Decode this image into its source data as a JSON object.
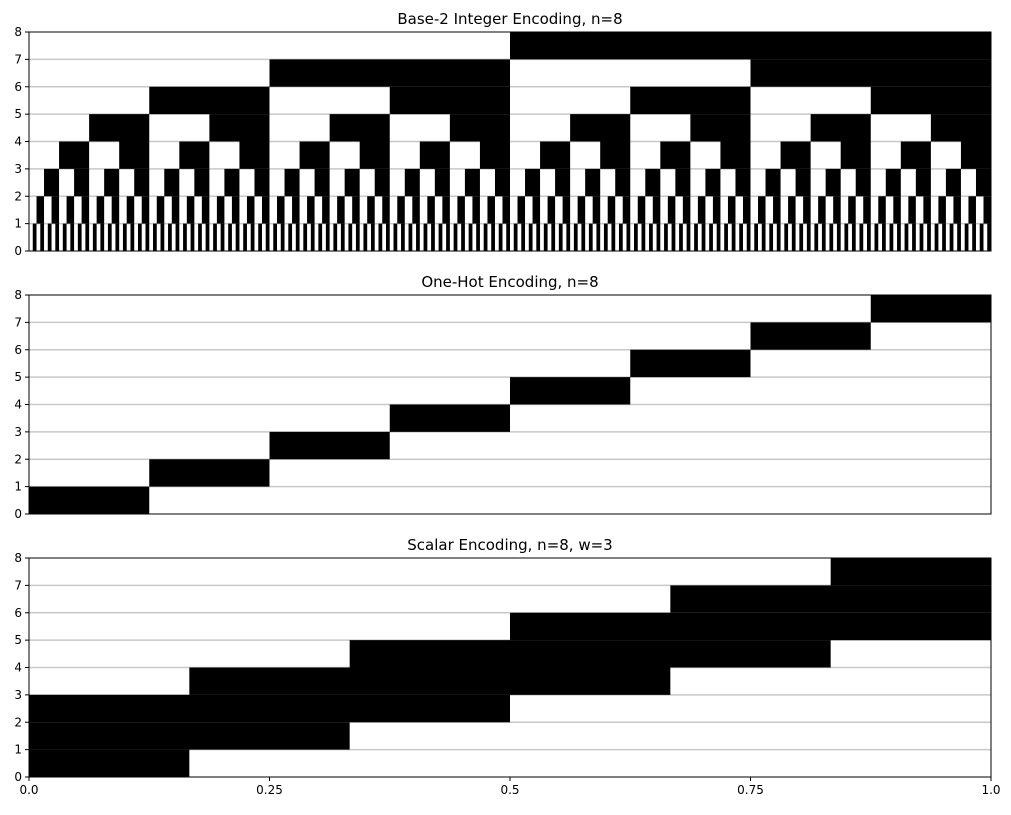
{
  "chart_data": [
    {
      "type": "heatmap",
      "title": "Base-2 Integer Encoding, n=8",
      "encoding": "binary",
      "bits": 8,
      "values": [
        0,
        1,
        2,
        3,
        4,
        5,
        6,
        7,
        8,
        9,
        10,
        11,
        12,
        13,
        14,
        15,
        16,
        17,
        18,
        19,
        20,
        21,
        22,
        23,
        24,
        25,
        26,
        27,
        28,
        29,
        30,
        31,
        32,
        33,
        34,
        35,
        36,
        37,
        38,
        39,
        40,
        41,
        42,
        43,
        44,
        45,
        46,
        47,
        48,
        49,
        50,
        51,
        52,
        53,
        54,
        55,
        56,
        57,
        58,
        59,
        60,
        61,
        62,
        63,
        64,
        65,
        66,
        67,
        68,
        69,
        70,
        71,
        72,
        73,
        74,
        75,
        76,
        77,
        78,
        79,
        80,
        81,
        82,
        83,
        84,
        85,
        86,
        87,
        88,
        89,
        90,
        91,
        92,
        93,
        94,
        95,
        96,
        97,
        98,
        99,
        100,
        101,
        102,
        103,
        104,
        105,
        106,
        107,
        108,
        109,
        110,
        111,
        112,
        113,
        114,
        115,
        116,
        117,
        118,
        119,
        120,
        121,
        122,
        123,
        124,
        125,
        126,
        127,
        128,
        129,
        130,
        131,
        132,
        133,
        134,
        135,
        136,
        137,
        138,
        139,
        140,
        141,
        142,
        143,
        144,
        145,
        146,
        147,
        148,
        149,
        150,
        151,
        152,
        153,
        154,
        155,
        156,
        157,
        158,
        159,
        160,
        161,
        162,
        163,
        164,
        165,
        166,
        167,
        168,
        169,
        170,
        171,
        172,
        173,
        174,
        175,
        176,
        177,
        178,
        179,
        180,
        181,
        182,
        183,
        184,
        185,
        186,
        187,
        188,
        189,
        190,
        191,
        192,
        193,
        194,
        195,
        196,
        197,
        198,
        199,
        200,
        201,
        202,
        203,
        204,
        205,
        206,
        207,
        208,
        209,
        210,
        211,
        212,
        213,
        214,
        215,
        216,
        217,
        218,
        219,
        220,
        221,
        222,
        223,
        224,
        225,
        226,
        227,
        228,
        229,
        230,
        231,
        232,
        233,
        234,
        235,
        236,
        237,
        238,
        239,
        240,
        241,
        242,
        243,
        244,
        245,
        246,
        247,
        248,
        249,
        250,
        251,
        252,
        253,
        254,
        255
      ],
      "xlim": [
        0,
        1
      ],
      "ylim": [
        0,
        8
      ],
      "yticks": [
        "0",
        "1",
        "2",
        "3",
        "4",
        "5",
        "6",
        "7",
        "8"
      ],
      "xticks": [],
      "grid": "horizontal"
    },
    {
      "type": "heatmap",
      "title": "One-Hot Encoding, n=8",
      "encoding": "one-hot",
      "active_start_row": [
        0,
        1,
        2,
        3,
        4,
        5,
        6,
        7
      ],
      "width": 1,
      "xlim": [
        0,
        1
      ],
      "ylim": [
        0,
        8
      ],
      "yticks": [
        "0",
        "1",
        "2",
        "3",
        "4",
        "5",
        "6",
        "7",
        "8"
      ],
      "xticks": [],
      "grid": "horizontal"
    },
    {
      "type": "heatmap",
      "title": "Scalar Encoding, n=8, w=3",
      "encoding": "scalar",
      "active_start_row": [
        0,
        1,
        2,
        3,
        4,
        5
      ],
      "width": 3,
      "xlim": [
        0,
        1
      ],
      "ylim": [
        0,
        8
      ],
      "yticks": [
        "0",
        "1",
        "2",
        "3",
        "4",
        "5",
        "6",
        "7",
        "8"
      ],
      "xticks": [
        {
          "value": 0,
          "label": "0.0"
        },
        {
          "value": 0.25,
          "label": "0.25"
        },
        {
          "value": 0.5,
          "label": "0.5"
        },
        {
          "value": 0.75,
          "label": "0.75"
        },
        {
          "value": 1,
          "label": "1.0"
        }
      ],
      "grid": "horizontal"
    }
  ],
  "colors": {
    "active": "#000000",
    "inactive": "#ffffff",
    "grid": "#c8c8c8"
  }
}
